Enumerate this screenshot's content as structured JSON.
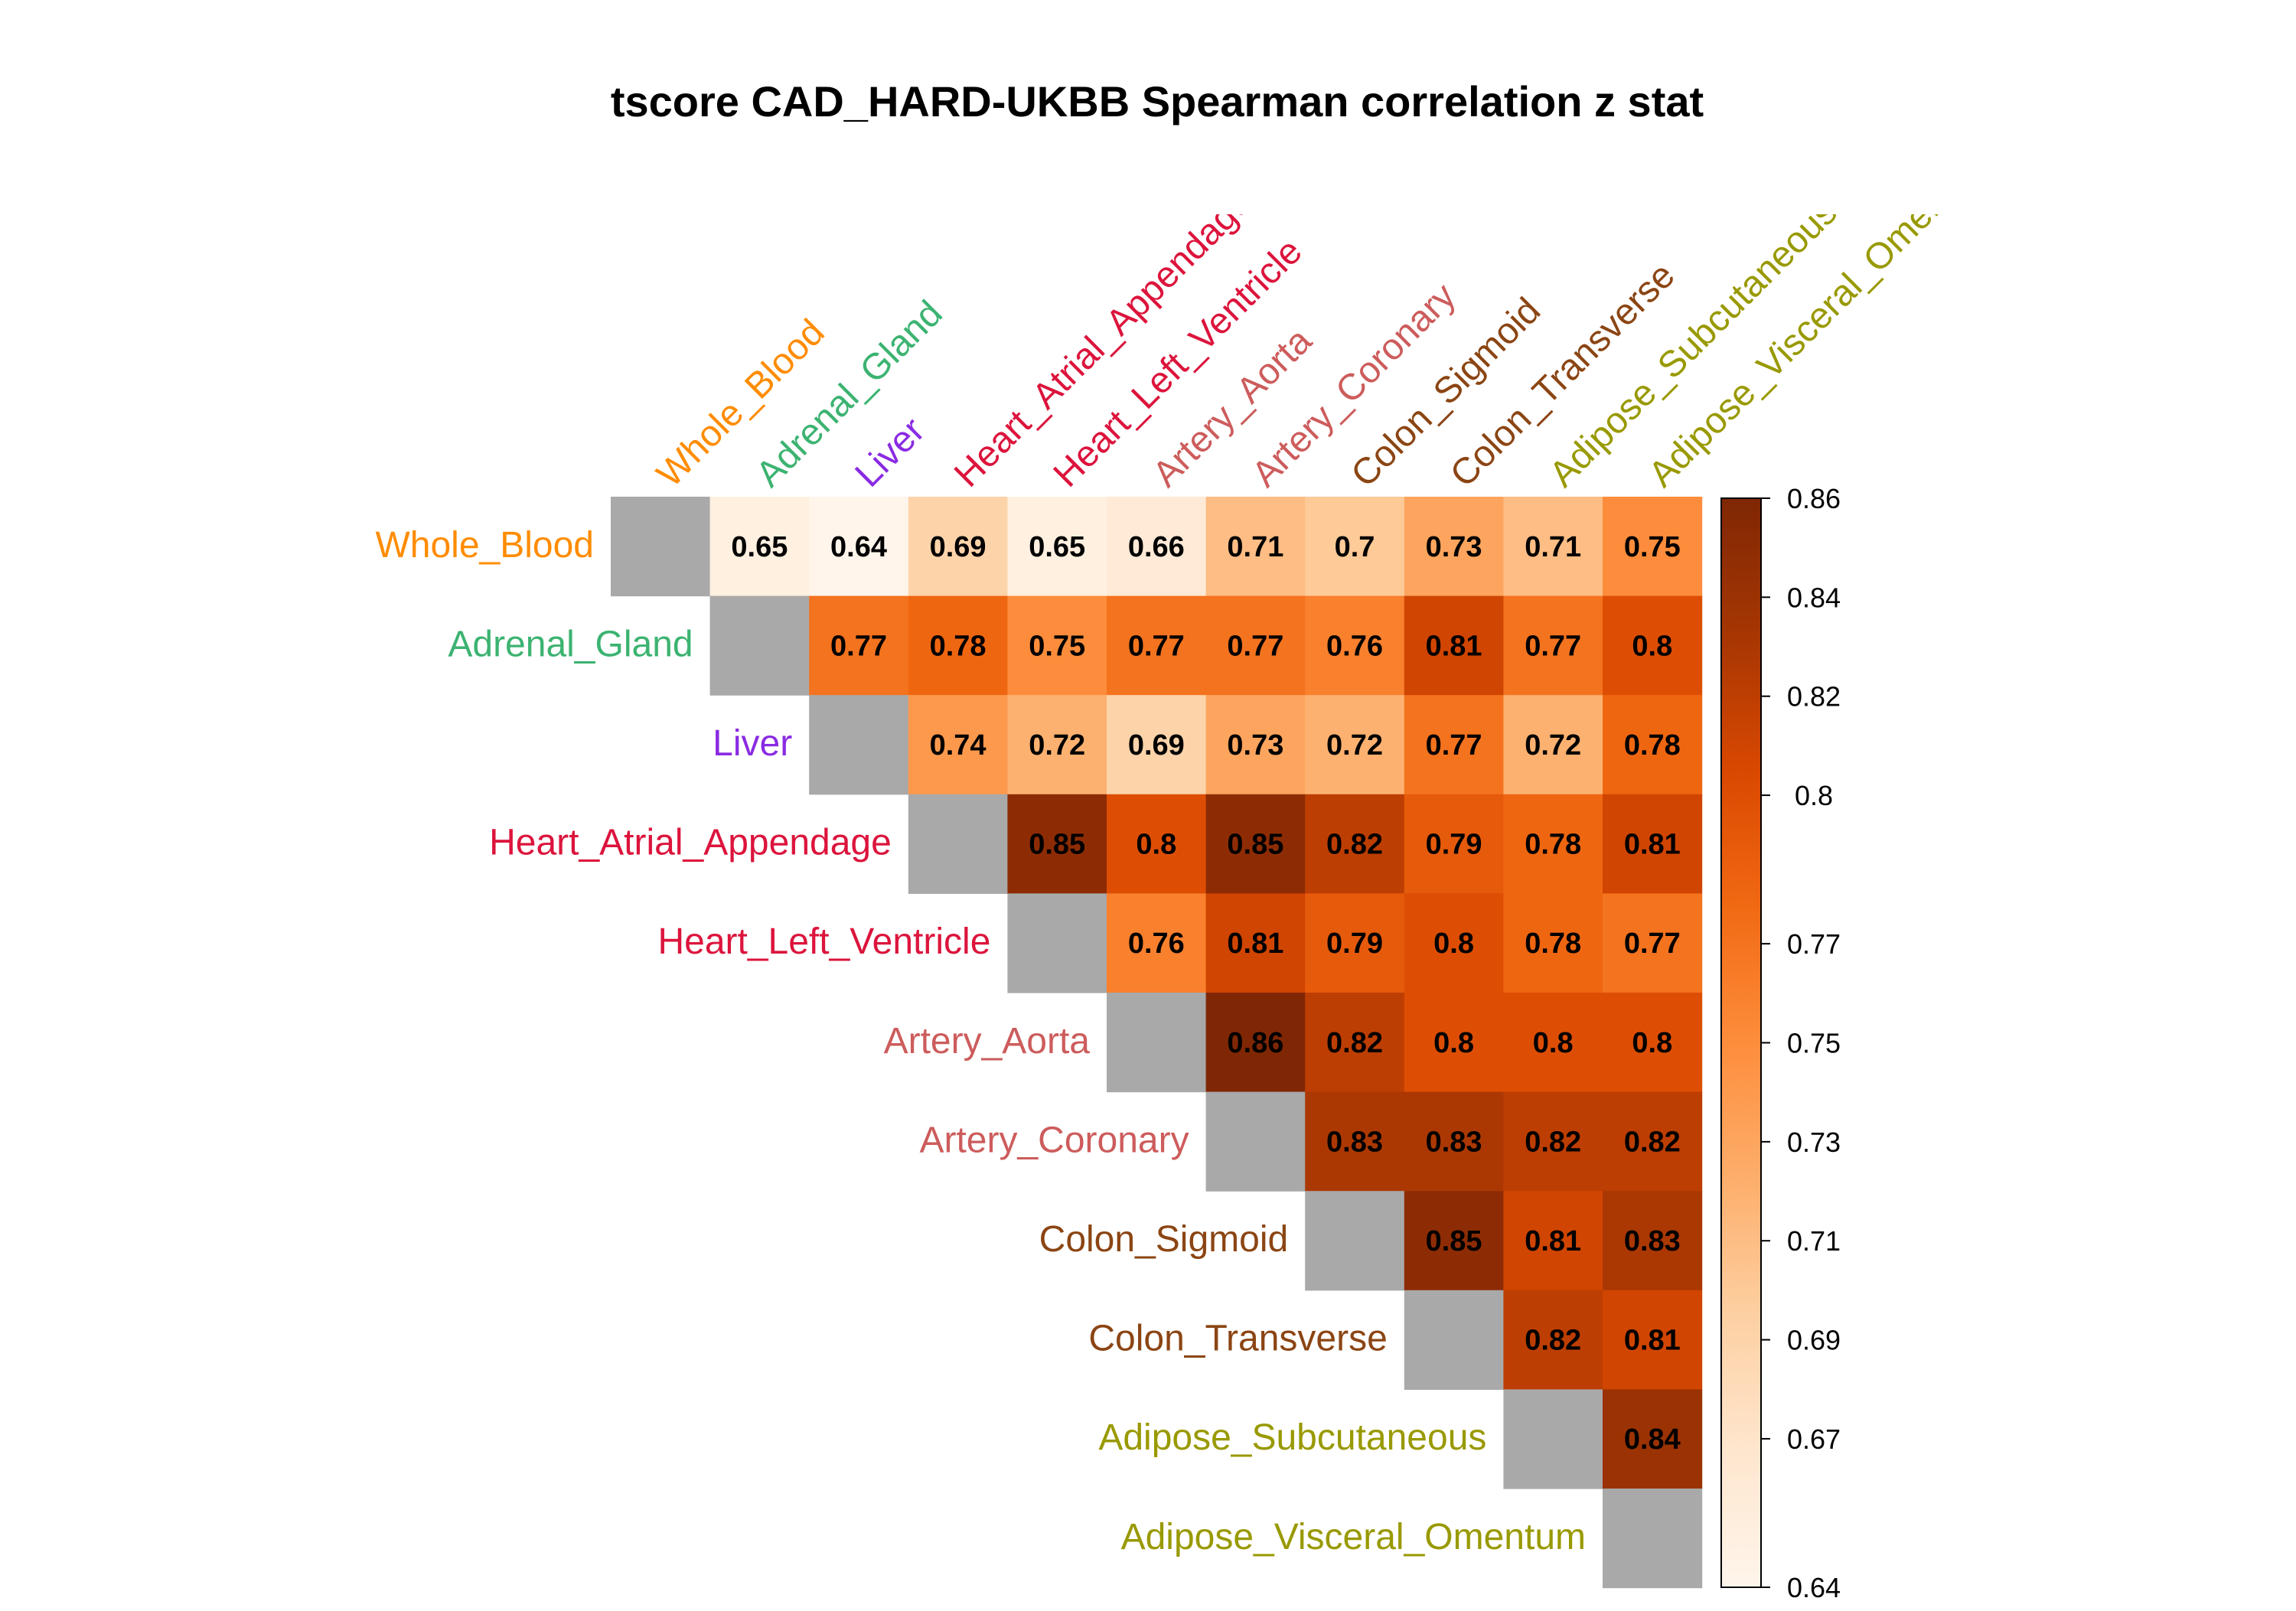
{
  "chart_data": {
    "type": "heatmap",
    "title": "tscore CAD_HARD-UKBB Spearman correlation z stat",
    "xlabel": "",
    "ylabel": "",
    "layout": "upper-triangle",
    "diagonal_color": "#a9a9a9",
    "tissues": [
      {
        "name": "Whole_Blood",
        "color": "#ff8c00"
      },
      {
        "name": "Adrenal_Gland",
        "color": "#3cb371"
      },
      {
        "name": "Liver",
        "color": "#8a2be2"
      },
      {
        "name": "Heart_Atrial_Appendage",
        "color": "#dc143c"
      },
      {
        "name": "Heart_Left_Ventricle",
        "color": "#dc143c"
      },
      {
        "name": "Artery_Aorta",
        "color": "#cd5c5c"
      },
      {
        "name": "Artery_Coronary",
        "color": "#cd5c5c"
      },
      {
        "name": "Colon_Sigmoid",
        "color": "#8b4513"
      },
      {
        "name": "Colon_Transverse",
        "color": "#8b4513"
      },
      {
        "name": "Adipose_Subcutaneous",
        "color": "#999900"
      },
      {
        "name": "Adipose_Visceral_Omentum",
        "color": "#999900"
      }
    ],
    "column_labels": [
      "Whole_Blood",
      "Adrenal_Gland",
      "Liver",
      "Heart_Atrial_Appendage",
      "Heart_Left_Ventricle",
      "Artery_Aorta",
      "Artery_Coronary",
      "Colon_Sigmoid",
      "Colon_Transverse",
      "Adipose_Subcutaneous",
      "Adipose_Visceral_Omentum"
    ],
    "matrix": [
      [
        null,
        0.65,
        0.64,
        0.69,
        0.65,
        0.66,
        0.71,
        0.7,
        0.73,
        0.71,
        0.75
      ],
      [
        null,
        null,
        0.77,
        0.78,
        0.75,
        0.77,
        0.77,
        0.76,
        0.81,
        0.77,
        0.8
      ],
      [
        null,
        null,
        null,
        0.74,
        0.72,
        0.69,
        0.73,
        0.72,
        0.77,
        0.72,
        0.78
      ],
      [
        null,
        null,
        null,
        null,
        0.85,
        0.8,
        0.85,
        0.82,
        0.79,
        0.78,
        0.81
      ],
      [
        null,
        null,
        null,
        null,
        null,
        0.76,
        0.81,
        0.79,
        0.8,
        0.78,
        0.77
      ],
      [
        null,
        null,
        null,
        null,
        null,
        null,
        0.86,
        0.82,
        0.8,
        0.8,
        0.8
      ],
      [
        null,
        null,
        null,
        null,
        null,
        null,
        null,
        0.83,
        0.83,
        0.82,
        0.82
      ],
      [
        null,
        null,
        null,
        null,
        null,
        null,
        null,
        null,
        0.85,
        0.81,
        0.83
      ],
      [
        null,
        null,
        null,
        null,
        null,
        null,
        null,
        null,
        null,
        0.82,
        0.81
      ],
      [
        null,
        null,
        null,
        null,
        null,
        null,
        null,
        null,
        null,
        null,
        0.84
      ],
      [
        null,
        null,
        null,
        null,
        null,
        null,
        null,
        null,
        null,
        null,
        null
      ]
    ],
    "cell_labels": [
      [
        null,
        "0.65",
        "0.64",
        "0.69",
        "0.65",
        "0.66",
        "0.71",
        "0.7",
        "0.73",
        "0.71",
        "0.75"
      ],
      [
        null,
        null,
        "0.77",
        "0.78",
        "0.75",
        "0.77",
        "0.77",
        "0.76",
        "0.81",
        "0.77",
        "0.8"
      ],
      [
        null,
        null,
        null,
        "0.74",
        "0.72",
        "0.69",
        "0.73",
        "0.72",
        "0.77",
        "0.72",
        "0.78"
      ],
      [
        null,
        null,
        null,
        null,
        "0.85",
        "0.8",
        "0.85",
        "0.82",
        "0.79",
        "0.78",
        "0.81"
      ],
      [
        null,
        null,
        null,
        null,
        null,
        "0.76",
        "0.81",
        "0.79",
        "0.8",
        "0.78",
        "0.77"
      ],
      [
        null,
        null,
        null,
        null,
        null,
        null,
        "0.86",
        "0.82",
        "0.8",
        "0.8",
        "0.8"
      ],
      [
        null,
        null,
        null,
        null,
        null,
        null,
        null,
        "0.83",
        "0.83",
        "0.82",
        "0.82"
      ],
      [
        null,
        null,
        null,
        null,
        null,
        null,
        null,
        null,
        "0.85",
        "0.81",
        "0.83"
      ],
      [
        null,
        null,
        null,
        null,
        null,
        null,
        null,
        null,
        null,
        "0.82",
        "0.81"
      ],
      [
        null,
        null,
        null,
        null,
        null,
        null,
        null,
        null,
        null,
        null,
        "0.84"
      ],
      [
        null,
        null,
        null,
        null,
        null,
        null,
        null,
        null,
        null,
        null,
        null
      ]
    ],
    "colorbar": {
      "range": [
        0.64,
        0.86
      ],
      "ticks": [
        0.64,
        0.67,
        0.69,
        0.71,
        0.73,
        0.75,
        0.77,
        0.8,
        0.82,
        0.84,
        0.86
      ],
      "tick_labels": [
        "0.64",
        "0.67",
        "0.69",
        "0.71",
        "0.73",
        "0.75",
        "0.77",
        "0.8",
        "0.82",
        "0.84",
        "0.86"
      ],
      "color_stops": [
        {
          "value": 0.64,
          "color": "#fff5eb"
        },
        {
          "value": 0.6675,
          "color": "#fee6ce"
        },
        {
          "value": 0.695,
          "color": "#fdd0a2"
        },
        {
          "value": 0.7225,
          "color": "#fdae6b"
        },
        {
          "value": 0.75,
          "color": "#fd8d3c"
        },
        {
          "value": 0.7775,
          "color": "#f16913"
        },
        {
          "value": 0.805,
          "color": "#d94801"
        },
        {
          "value": 0.8325,
          "color": "#a63603"
        },
        {
          "value": 0.86,
          "color": "#7f2704"
        }
      ]
    }
  }
}
